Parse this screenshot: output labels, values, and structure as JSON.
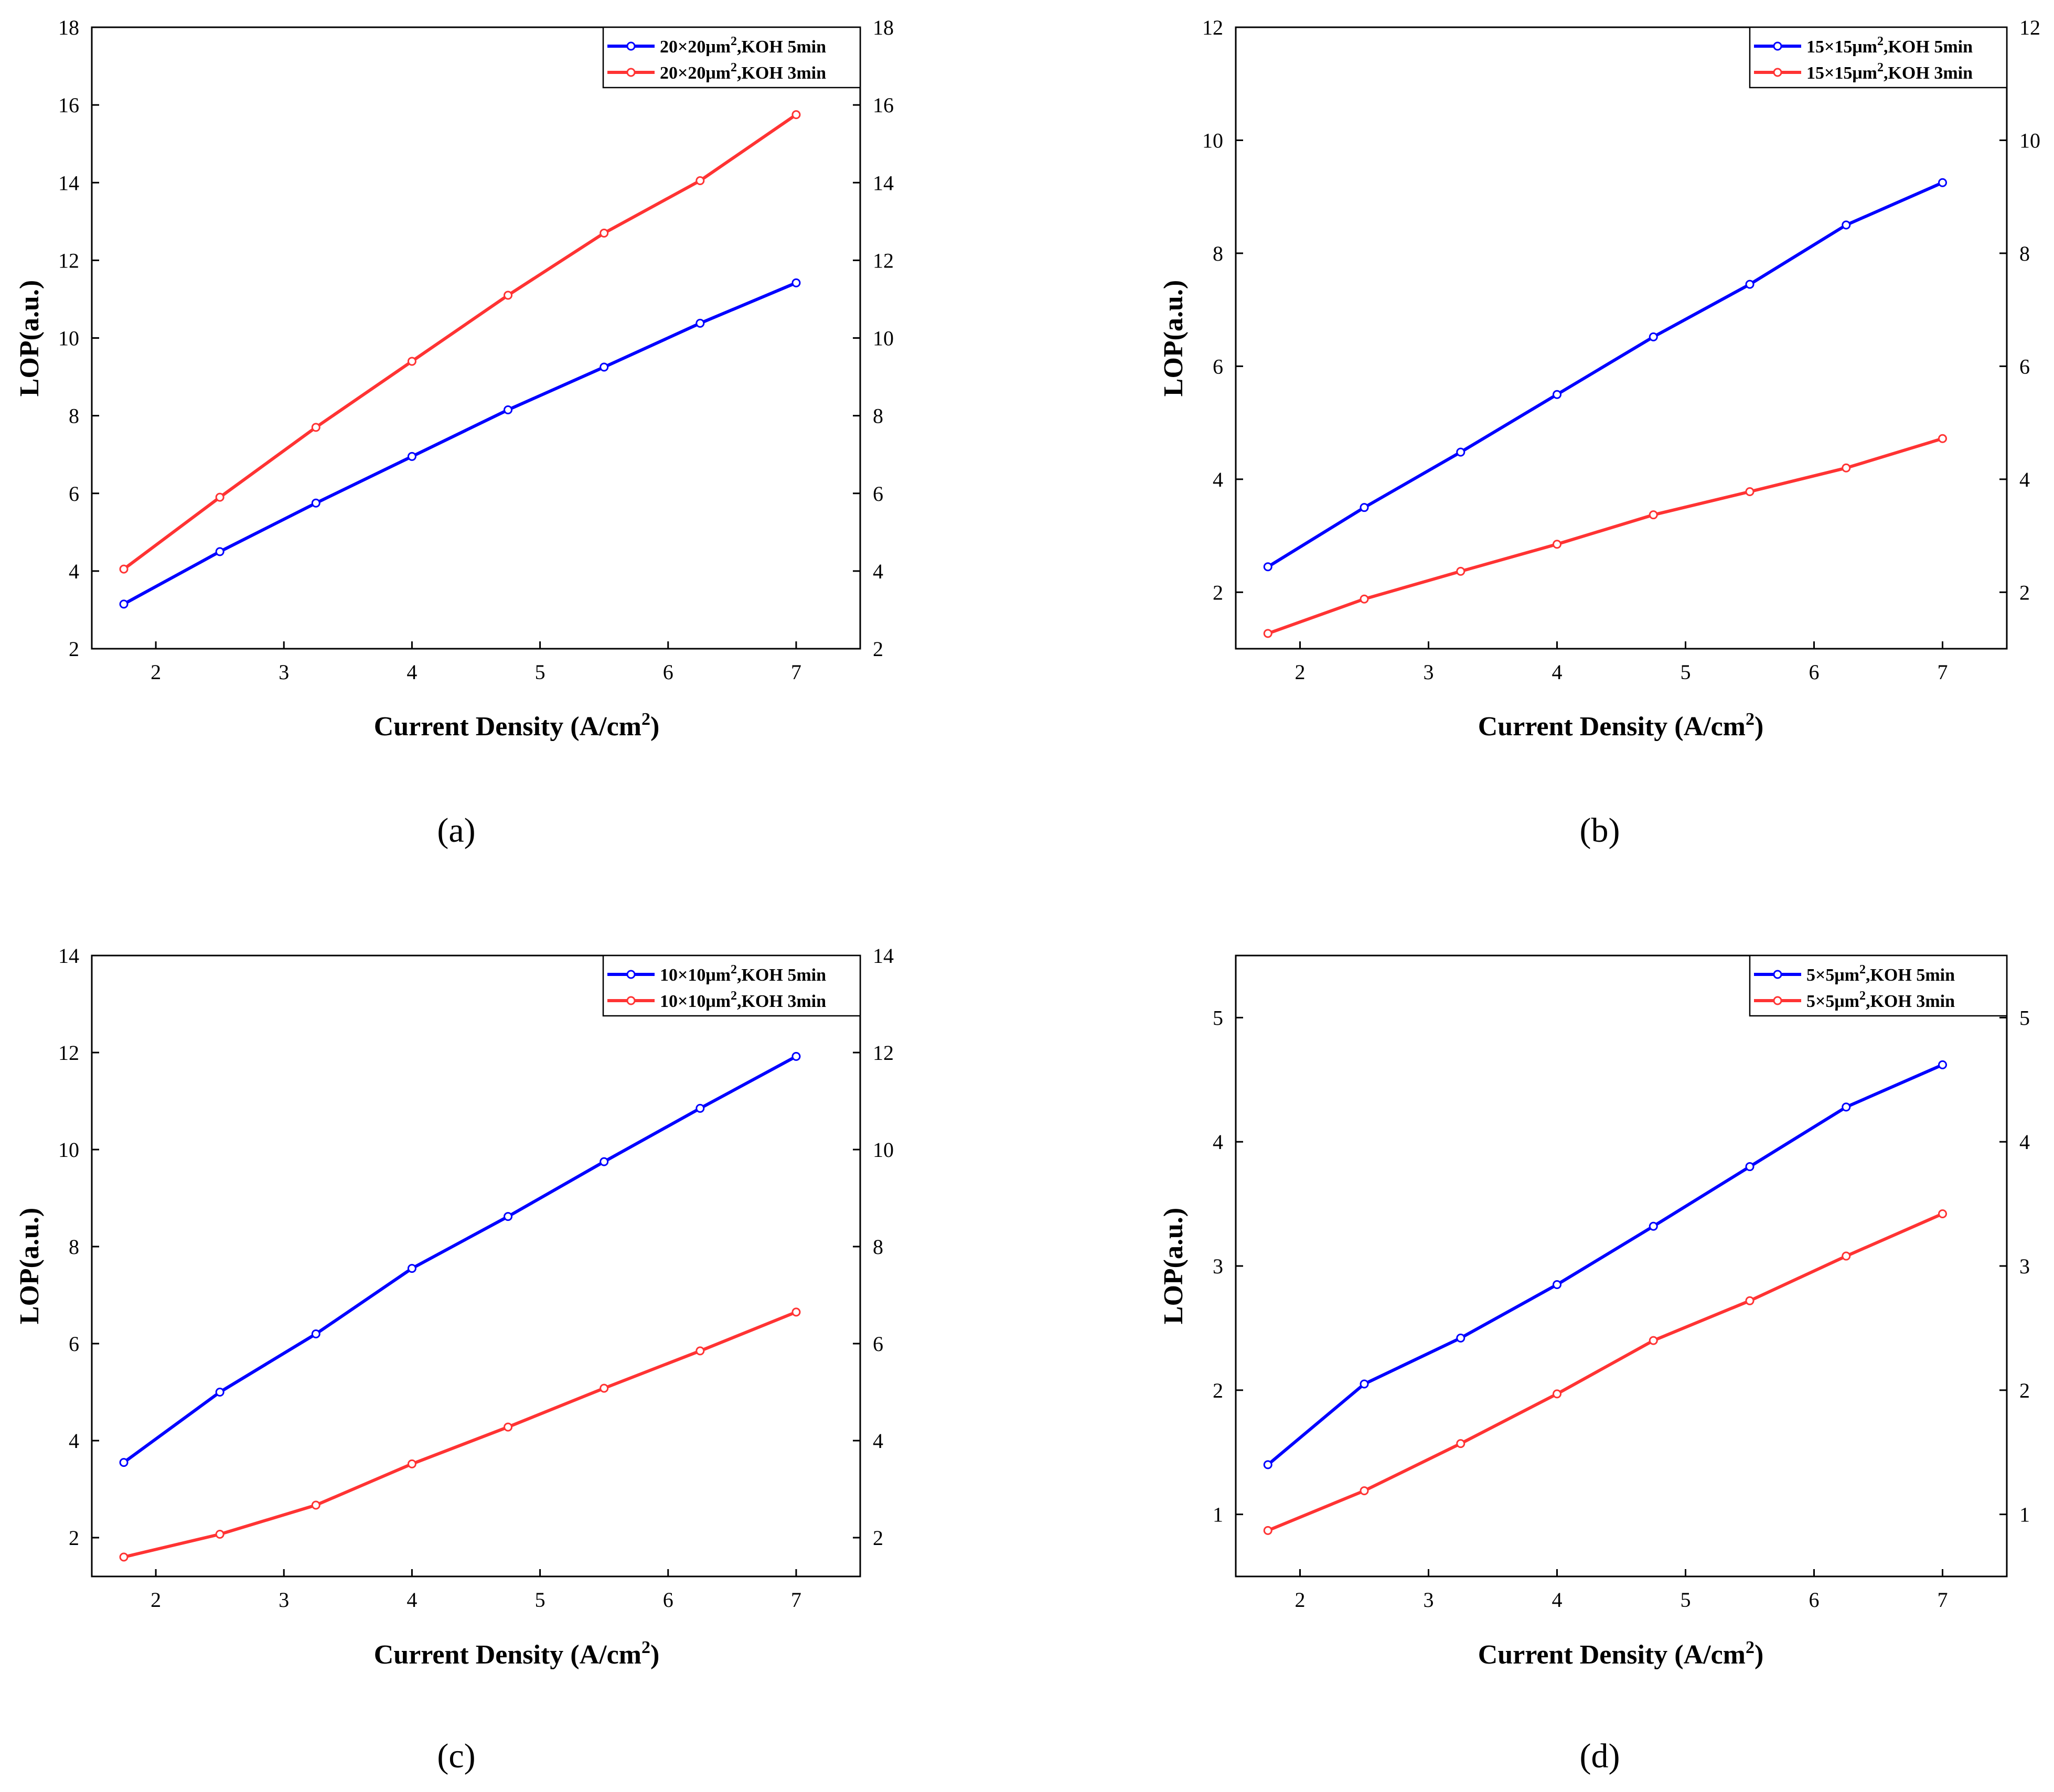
{
  "chart_data": [
    {
      "type": "line",
      "panel_label": "(a)",
      "panel_letter": "a",
      "xlabel": "Current Density (A/cm",
      "xlabel_sup": "2",
      "xlabel_end": ")",
      "ylabel": "LOP(a.u.)",
      "xlim": [
        1.5,
        7.5
      ],
      "ylim": [
        2,
        18
      ],
      "xticks": [
        2,
        3,
        4,
        5,
        6,
        7
      ],
      "yticks": [
        2,
        4,
        6,
        8,
        10,
        12,
        14,
        16,
        18
      ],
      "x": [
        1.75,
        2.5,
        3.25,
        4.0,
        4.75,
        5.5,
        6.25,
        7.0
      ],
      "series": [
        {
          "name": "20×20μm",
          "sup": "2",
          "suffix": ",KOH 5min",
          "color": "#0000ff",
          "values": [
            3.15,
            4.5,
            5.75,
            6.95,
            8.15,
            9.25,
            10.38,
            11.42
          ]
        },
        {
          "name": "20×20μm",
          "sup": "2",
          "suffix": ",KOH 3min",
          "color": "#ff3333",
          "values": [
            4.05,
            5.9,
            7.7,
            9.4,
            11.1,
            12.7,
            14.05,
            15.75
          ]
        }
      ],
      "legend": "top-right"
    },
    {
      "type": "line",
      "panel_label": "(b)",
      "panel_letter": "b",
      "xlabel": "Current Density (A/cm",
      "xlabel_sup": "2",
      "xlabel_end": ")",
      "ylabel": "LOP(a.u.)",
      "xlim": [
        1.5,
        7.5
      ],
      "ylim": [
        1,
        12
      ],
      "xticks": [
        2,
        3,
        4,
        5,
        6,
        7
      ],
      "yticks": [
        2,
        4,
        6,
        8,
        10,
        12
      ],
      "x": [
        1.75,
        2.5,
        3.25,
        4.0,
        4.75,
        5.5,
        6.25,
        7.0
      ],
      "series": [
        {
          "name": "15×15μm",
          "sup": "2",
          "suffix": ",KOH 5min",
          "color": "#0000ff",
          "values": [
            2.45,
            3.5,
            4.48,
            5.5,
            6.52,
            7.45,
            8.5,
            9.25
          ]
        },
        {
          "name": "15×15μm",
          "sup": "2",
          "suffix": ",KOH 3min",
          "color": "#ff3333",
          "values": [
            1.27,
            1.88,
            2.37,
            2.85,
            3.37,
            3.78,
            4.2,
            4.72
          ]
        }
      ],
      "legend": "top-right"
    },
    {
      "type": "line",
      "panel_label": "(c)",
      "panel_letter": "c",
      "xlabel": "Current Density (A/cm",
      "xlabel_sup": "2",
      "xlabel_end": ")",
      "ylabel": "LOP(a.u.)",
      "xlim": [
        1.5,
        7.5
      ],
      "ylim": [
        1.2,
        14
      ],
      "xticks": [
        2,
        3,
        4,
        5,
        6,
        7
      ],
      "yticks": [
        2,
        4,
        6,
        8,
        10,
        12,
        14
      ],
      "x": [
        1.75,
        2.5,
        3.25,
        4.0,
        4.75,
        5.5,
        6.25,
        7.0
      ],
      "series": [
        {
          "name": "10×10μm",
          "sup": "2",
          "suffix": ",KOH 5min",
          "color": "#0000ff",
          "values": [
            3.55,
            5.0,
            6.2,
            7.55,
            8.62,
            9.75,
            10.85,
            11.92
          ]
        },
        {
          "name": "10×10μm",
          "sup": "2",
          "suffix": ",KOH 3min",
          "color": "#ff3333",
          "values": [
            1.6,
            2.07,
            2.67,
            3.52,
            4.28,
            5.08,
            5.85,
            6.65
          ]
        }
      ],
      "legend": "top-right"
    },
    {
      "type": "line",
      "panel_label": "(d)",
      "panel_letter": "d",
      "xlabel": "Current Density (A/cm",
      "xlabel_sup": "2",
      "xlabel_end": ")",
      "ylabel": "LOP(a.u.)",
      "xlim": [
        1.5,
        7.5
      ],
      "ylim": [
        0.5,
        5.5
      ],
      "xticks": [
        2,
        3,
        4,
        5,
        6,
        7
      ],
      "yticks": [
        1,
        2,
        3,
        4,
        5
      ],
      "x": [
        1.75,
        2.5,
        3.25,
        4.0,
        4.75,
        5.5,
        6.25,
        7.0
      ],
      "series": [
        {
          "name": "5×5μm",
          "sup": "2",
          "suffix": ",KOH 5min",
          "color": "#0000ff",
          "values": [
            1.4,
            2.05,
            2.42,
            2.85,
            3.32,
            3.8,
            4.28,
            4.62
          ]
        },
        {
          "name": "5×5μm",
          "sup": "2",
          "suffix": ",KOH 3min",
          "color": "#ff3333",
          "values": [
            0.87,
            1.19,
            1.57,
            1.97,
            2.4,
            2.72,
            3.08,
            3.42
          ]
        }
      ],
      "legend": "top-right"
    }
  ]
}
